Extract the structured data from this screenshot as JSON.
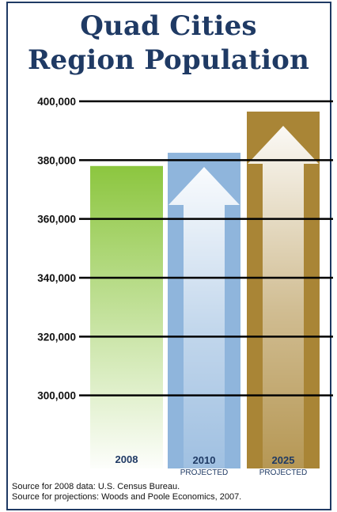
{
  "title_line_1": "Quad Cities",
  "title_line_2": "Region Population",
  "sources": [
    "Source for 2008 data: U.S. Census Bureau.",
    "Source for projections: Woods and Poole Economics, 2007."
  ],
  "colors": {
    "title": "#1f3a64",
    "bar_2008": "#8cc63f",
    "bar_2010": "#8fb5dc",
    "bar_2025": "#a98536",
    "category_label": "#1f3a64",
    "gridline": "#000000"
  },
  "chart_data": {
    "type": "bar",
    "title": "Quad Cities Region Population",
    "xlabel": "",
    "ylabel": "",
    "categories": [
      "2008",
      "2010",
      "2025"
    ],
    "category_sublabels": [
      "",
      "PROJECTED",
      "PROJECTED"
    ],
    "values": [
      378000,
      382500,
      396500
    ],
    "ylim": [
      280000,
      400000
    ],
    "yticks": [
      300000,
      320000,
      340000,
      360000,
      380000,
      400000
    ],
    "ytick_labels": [
      "300,000",
      "320,000",
      "340,000",
      "360,000",
      "380,000",
      "400,000"
    ],
    "grid": true,
    "legend": "none"
  }
}
